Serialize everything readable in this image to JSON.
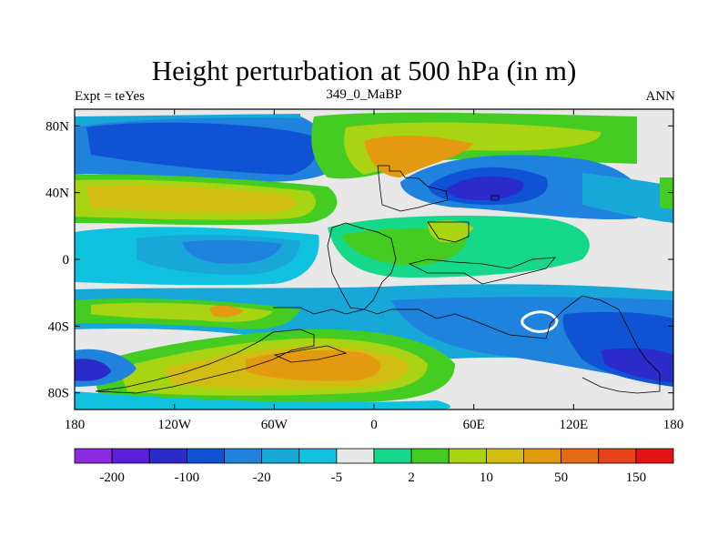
{
  "chart_data": {
    "type": "contour-map",
    "title": "Height perturbation at 500 hPa (in m)",
    "left_label": "Expt = teYes",
    "center_label": "349_0_MaBP",
    "right_label": "ANN",
    "x_ticks": [
      "180",
      "120W",
      "60W",
      "0",
      "60E",
      "120E",
      "180"
    ],
    "x_tick_values": [
      -180,
      -120,
      -60,
      0,
      60,
      120,
      180
    ],
    "y_ticks": [
      "80N",
      "40N",
      "0",
      "40S",
      "80S"
    ],
    "y_tick_values": [
      80,
      40,
      0,
      -40,
      -80
    ],
    "xlim": [
      -180,
      180
    ],
    "ylim": [
      -90,
      90
    ],
    "colorbar": {
      "colors": [
        "#8a2be2",
        "#5a1fd8",
        "#2a2bc8",
        "#0f52d4",
        "#1f82dc",
        "#18a8d8",
        "#10c2e0",
        "#e8e8e8",
        "#16d88a",
        "#44cc22",
        "#a8d414",
        "#d2be12",
        "#e49a10",
        "#e46a16",
        "#e84218",
        "#e41414"
      ],
      "labels": [
        "-200",
        "-100",
        "-20",
        "-5",
        "2",
        "10",
        "50",
        "150"
      ]
    },
    "fields": [
      {
        "id": "zero-contour",
        "value": 0
      },
      {
        "id": "north-mid-pos",
        "value": 50
      },
      {
        "id": "south-mid-pos",
        "value": 50
      },
      {
        "id": "north-neg",
        "value": -20
      },
      {
        "id": "south-neg",
        "value": -20
      },
      {
        "id": "tropic-neg",
        "value": -5
      }
    ]
  }
}
